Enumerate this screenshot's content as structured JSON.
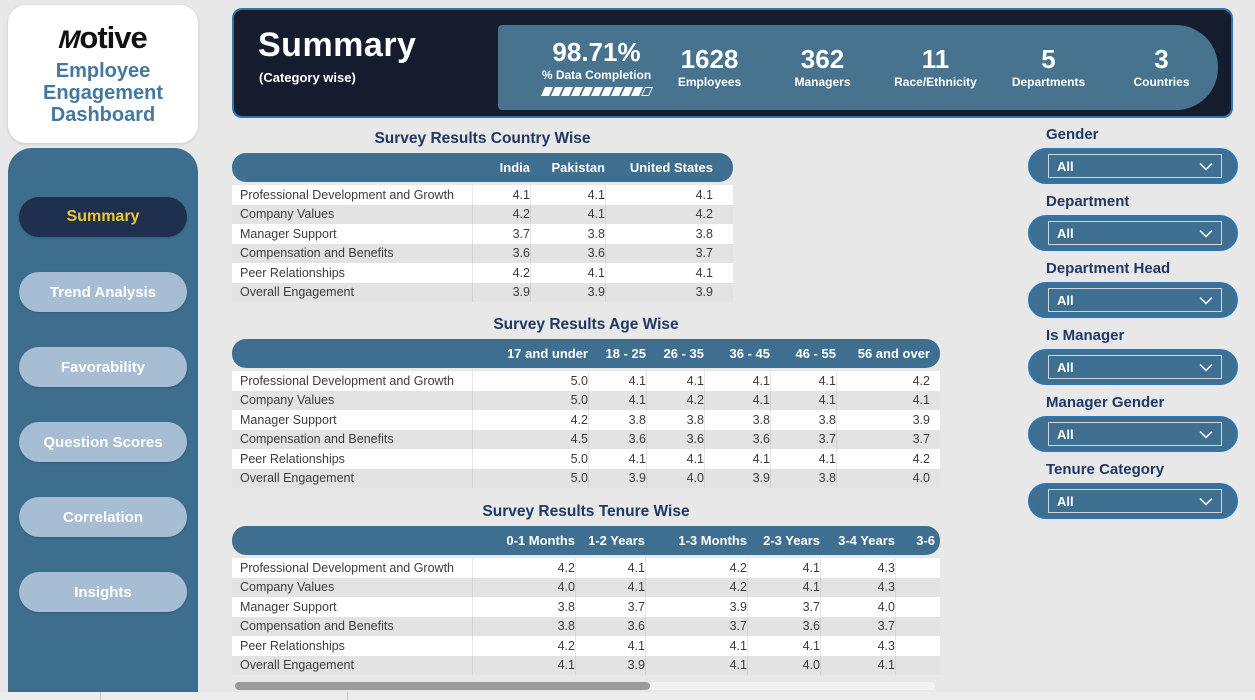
{
  "brand": {
    "logo_text": "motive",
    "title_lines": [
      "Employee",
      "Engagement",
      "Dashboard"
    ]
  },
  "header": {
    "title": "Summary",
    "subtitle": "(Category wise)",
    "kpis": [
      {
        "value": "98.71%",
        "label": "% Data Completion",
        "has_progress": true
      },
      {
        "value": "1628",
        "label": "Employees"
      },
      {
        "value": "362",
        "label": "Managers"
      },
      {
        "value": "11",
        "label": "Race/Ethnicity"
      },
      {
        "value": "5",
        "label": "Departments"
      },
      {
        "value": "3",
        "label": "Countries"
      }
    ],
    "progress": {
      "filled": 10,
      "empty": 1
    }
  },
  "sidebar": {
    "items": [
      {
        "label": "Summary",
        "active": true
      },
      {
        "label": "Trend Analysis",
        "active": false
      },
      {
        "label": "Favorability",
        "active": false
      },
      {
        "label": "Question Scores",
        "active": false
      },
      {
        "label": "Correlation",
        "active": false
      },
      {
        "label": "Insights",
        "active": false
      }
    ]
  },
  "tables": [
    {
      "title": "Survey Results Country Wise",
      "columns": [
        "India",
        "Pakistan",
        "United States"
      ],
      "rows": [
        {
          "label": "Professional Development and Growth",
          "values": [
            "4.1",
            "4.1",
            "4.1"
          ]
        },
        {
          "label": "Company Values",
          "values": [
            "4.2",
            "4.1",
            "4.2"
          ]
        },
        {
          "label": "Manager Support",
          "values": [
            "3.7",
            "3.8",
            "3.8"
          ]
        },
        {
          "label": "Compensation and Benefits",
          "values": [
            "3.6",
            "3.6",
            "3.7"
          ]
        },
        {
          "label": "Peer Relationships",
          "values": [
            "4.2",
            "4.1",
            "4.1"
          ]
        },
        {
          "label": "Overall Engagement",
          "values": [
            "3.9",
            "3.9",
            "3.9"
          ]
        }
      ]
    },
    {
      "title": "Survey Results Age Wise",
      "columns": [
        "17 and under",
        "18 - 25",
        "26 - 35",
        "36 - 45",
        "46 - 55",
        "56 and over"
      ],
      "rows": [
        {
          "label": "Professional Development and Growth",
          "values": [
            "5.0",
            "4.1",
            "4.1",
            "4.1",
            "4.1",
            "4.2"
          ]
        },
        {
          "label": "Company Values",
          "values": [
            "5.0",
            "4.1",
            "4.2",
            "4.1",
            "4.1",
            "4.1"
          ]
        },
        {
          "label": "Manager Support",
          "values": [
            "4.2",
            "3.8",
            "3.8",
            "3.8",
            "3.8",
            "3.9"
          ]
        },
        {
          "label": "Compensation and Benefits",
          "values": [
            "4.5",
            "3.6",
            "3.6",
            "3.6",
            "3.7",
            "3.7"
          ]
        },
        {
          "label": "Peer Relationships",
          "values": [
            "5.0",
            "4.1",
            "4.1",
            "4.1",
            "4.1",
            "4.2"
          ]
        },
        {
          "label": "Overall Engagement",
          "values": [
            "5.0",
            "3.9",
            "4.0",
            "3.9",
            "3.8",
            "4.0"
          ]
        }
      ]
    },
    {
      "title": "Survey Results Tenure Wise",
      "columns": [
        "0-1 Months",
        "1-2 Years",
        "1-3 Months",
        "2-3 Years",
        "3-4 Years",
        "3-6"
      ],
      "rows": [
        {
          "label": "Professional Development and Growth",
          "values": [
            "4.2",
            "4.1",
            "4.2",
            "4.1",
            "4.3",
            ""
          ]
        },
        {
          "label": "Company Values",
          "values": [
            "4.0",
            "4.1",
            "4.2",
            "4.1",
            "4.3",
            ""
          ]
        },
        {
          "label": "Manager Support",
          "values": [
            "3.8",
            "3.7",
            "3.9",
            "3.7",
            "4.0",
            ""
          ]
        },
        {
          "label": "Compensation and Benefits",
          "values": [
            "3.8",
            "3.6",
            "3.7",
            "3.6",
            "3.7",
            ""
          ]
        },
        {
          "label": "Peer Relationships",
          "values": [
            "4.2",
            "4.1",
            "4.1",
            "4.1",
            "4.3",
            ""
          ]
        },
        {
          "label": "Overall Engagement",
          "values": [
            "4.1",
            "3.9",
            "4.1",
            "4.0",
            "4.1",
            ""
          ]
        }
      ]
    }
  ],
  "filters": [
    {
      "label": "Gender",
      "value": "All"
    },
    {
      "label": "Department",
      "value": "All"
    },
    {
      "label": "Department Head",
      "value": "All"
    },
    {
      "label": "Is Manager",
      "value": "All"
    },
    {
      "label": "Manager Gender",
      "value": "All"
    },
    {
      "label": "Tenure Category",
      "value": "All"
    }
  ],
  "colors": {
    "steel_blue": "#3e6f90",
    "kpi_box_blue": "#47738f",
    "dark_navy": "#151c2e",
    "active_button_navy": "#1e2f4f",
    "accent_border_blue": "#2e75b6",
    "gold_text": "#e9c837",
    "inactive_button": "#a7bdd4",
    "title_navy": "#1f3864",
    "page_background": "#e8e8e8"
  }
}
